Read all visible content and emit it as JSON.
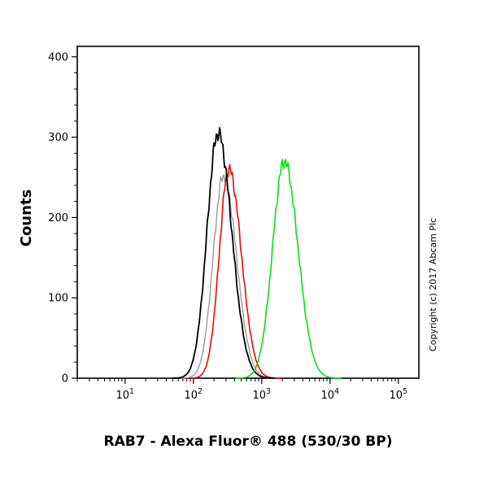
{
  "labels": {
    "ylabel": "Counts",
    "xlabel": "RAB7 - Alexa Fluor® 488 (530/30 BP)",
    "copyright": "Copyright (c) 2017 Abcam Plc"
  },
  "chart_data": {
    "type": "line",
    "subtype": "flow-cytometry-histogram",
    "title": "",
    "xlabel": "RAB7 - Alexa Fluor® 488 (530/30 BP)",
    "ylabel": "Counts",
    "x_scale": "log10",
    "xlim_log": [
      0.3,
      5.3
    ],
    "ylim": [
      0,
      413
    ],
    "x_ticks_exponents": [
      1,
      2,
      3,
      4,
      5
    ],
    "y_ticks": [
      0,
      100,
      200,
      300,
      400
    ],
    "y_minor_step": 20,
    "grid": false,
    "legend": "none",
    "series": [
      {
        "name": "control-gray",
        "color": "#9a9a9a",
        "peak_x": 275,
        "peak_log10": 2.44,
        "peak_height": 252,
        "sigma_left": 0.15,
        "sigma_right": 0.19,
        "stroke_width": 1.4
      },
      {
        "name": "control-red",
        "color": "#ff0000",
        "peak_x": 330,
        "peak_log10": 2.52,
        "peak_height": 260,
        "sigma_left": 0.14,
        "sigma_right": 0.18,
        "stroke_width": 1.6
      },
      {
        "name": "control-black",
        "color": "#000000",
        "peak_x": 230,
        "peak_log10": 2.36,
        "peak_height": 305,
        "sigma_left": 0.16,
        "sigma_right": 0.2,
        "stroke_width": 1.8
      },
      {
        "name": "rab7-alexa488-green",
        "color": "#00e40f",
        "peak_x": 2100,
        "peak_log10": 3.33,
        "peak_height": 270,
        "sigma_left": 0.17,
        "sigma_right": 0.2,
        "stroke_width": 1.6
      }
    ]
  }
}
